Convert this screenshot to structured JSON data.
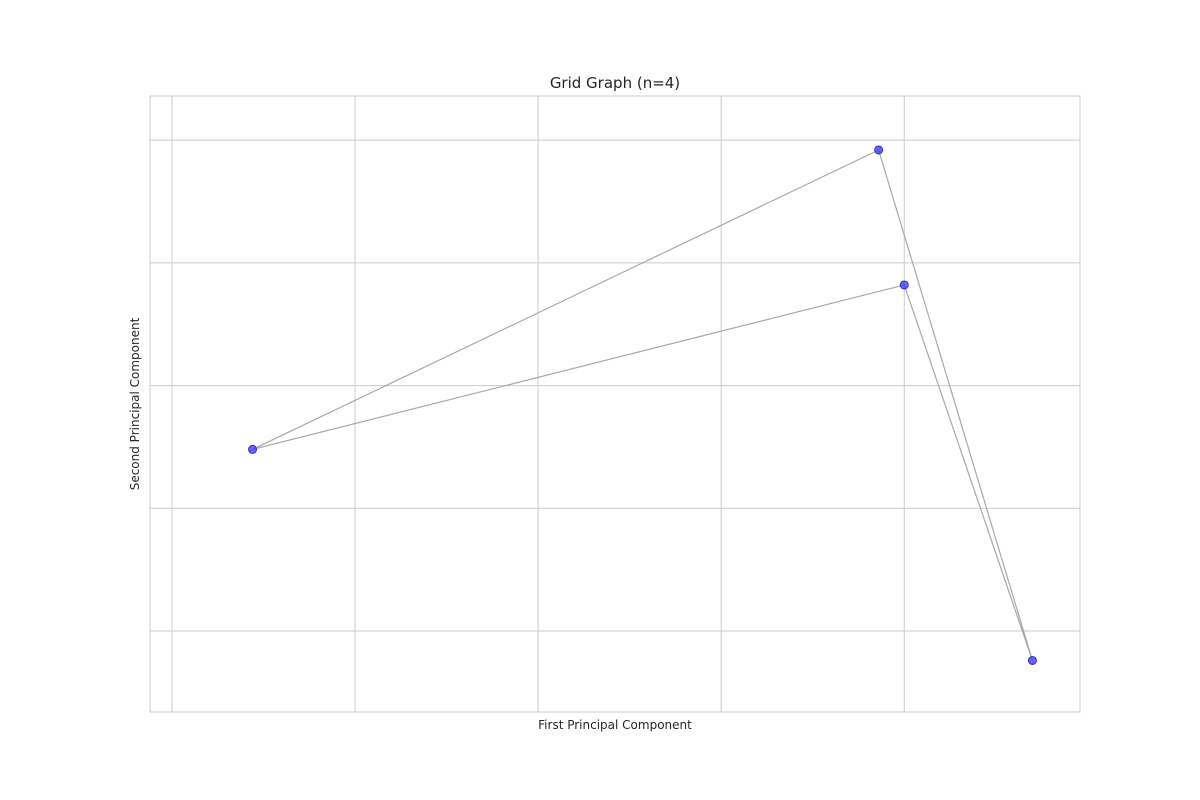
{
  "chart_data": {
    "type": "scatter",
    "title": "Grid Graph (n=4)",
    "xlabel": "First Principal Component",
    "ylabel": "Second Principal Component",
    "grid": true,
    "tick_labels_shown": false,
    "point_color": "#3434f0",
    "edge_color": "#a8a8a8",
    "xlim": [
      -1.06,
      1.48
    ],
    "ylim": [
      -1.33,
      1.18
    ],
    "nodes": [
      {
        "id": "n0",
        "x": -0.78,
        "y": -0.26
      },
      {
        "id": "n1",
        "x": 0.93,
        "y": 0.96
      },
      {
        "id": "n2",
        "x": 1.0,
        "y": 0.41
      },
      {
        "id": "n3",
        "x": 1.35,
        "y": -1.12
      }
    ],
    "edges": [
      [
        "n0",
        "n1"
      ],
      [
        "n0",
        "n2"
      ],
      [
        "n1",
        "n3"
      ],
      [
        "n2",
        "n3"
      ]
    ]
  }
}
